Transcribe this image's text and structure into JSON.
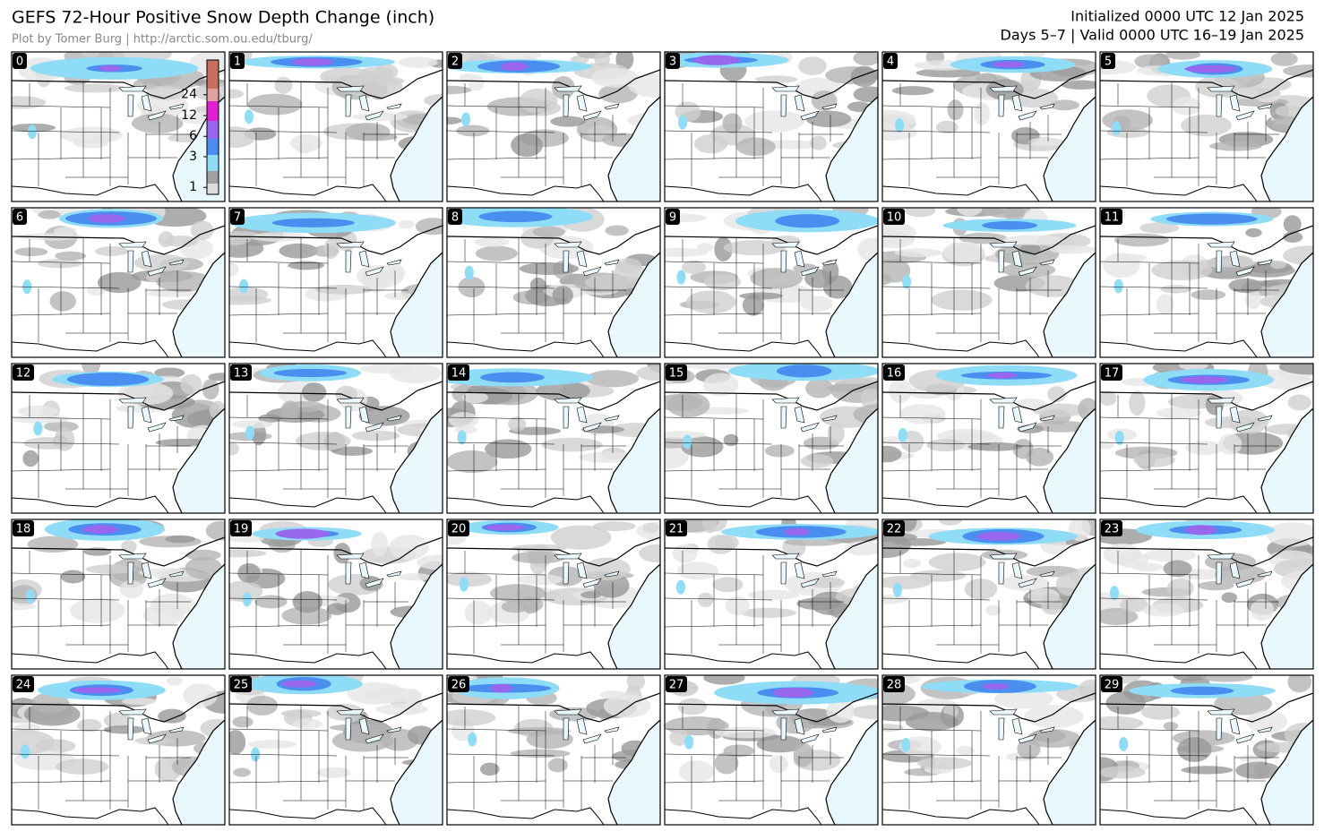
{
  "header": {
    "title": "GEFS 72-Hour Positive Snow Depth Change (inch)",
    "credit": "Plot by Tomer Burg | http://arctic.som.ou.edu/tburg/",
    "initialized": "Initialized 0000 UTC 12 Jan 2025",
    "valid": "Days 5–7 | Valid 0000 UTC 16–19 Jan 2025"
  },
  "colorbar": {
    "ticks": [
      1,
      3,
      6,
      12,
      24
    ]
  },
  "panels": [
    {
      "label": "0"
    },
    {
      "label": "1"
    },
    {
      "label": "2"
    },
    {
      "label": "3"
    },
    {
      "label": "4"
    },
    {
      "label": "5"
    },
    {
      "label": "6"
    },
    {
      "label": "7"
    },
    {
      "label": "8"
    },
    {
      "label": "9"
    },
    {
      "label": "10"
    },
    {
      "label": "11"
    },
    {
      "label": "12"
    },
    {
      "label": "13"
    },
    {
      "label": "14"
    },
    {
      "label": "15"
    },
    {
      "label": "16"
    },
    {
      "label": "17"
    },
    {
      "label": "18"
    },
    {
      "label": "19"
    },
    {
      "label": "20"
    },
    {
      "label": "21"
    },
    {
      "label": "22"
    },
    {
      "label": "23"
    },
    {
      "label": "24"
    },
    {
      "label": "25"
    },
    {
      "label": "26"
    },
    {
      "label": "27"
    },
    {
      "label": "28"
    },
    {
      "label": "29"
    }
  ]
}
